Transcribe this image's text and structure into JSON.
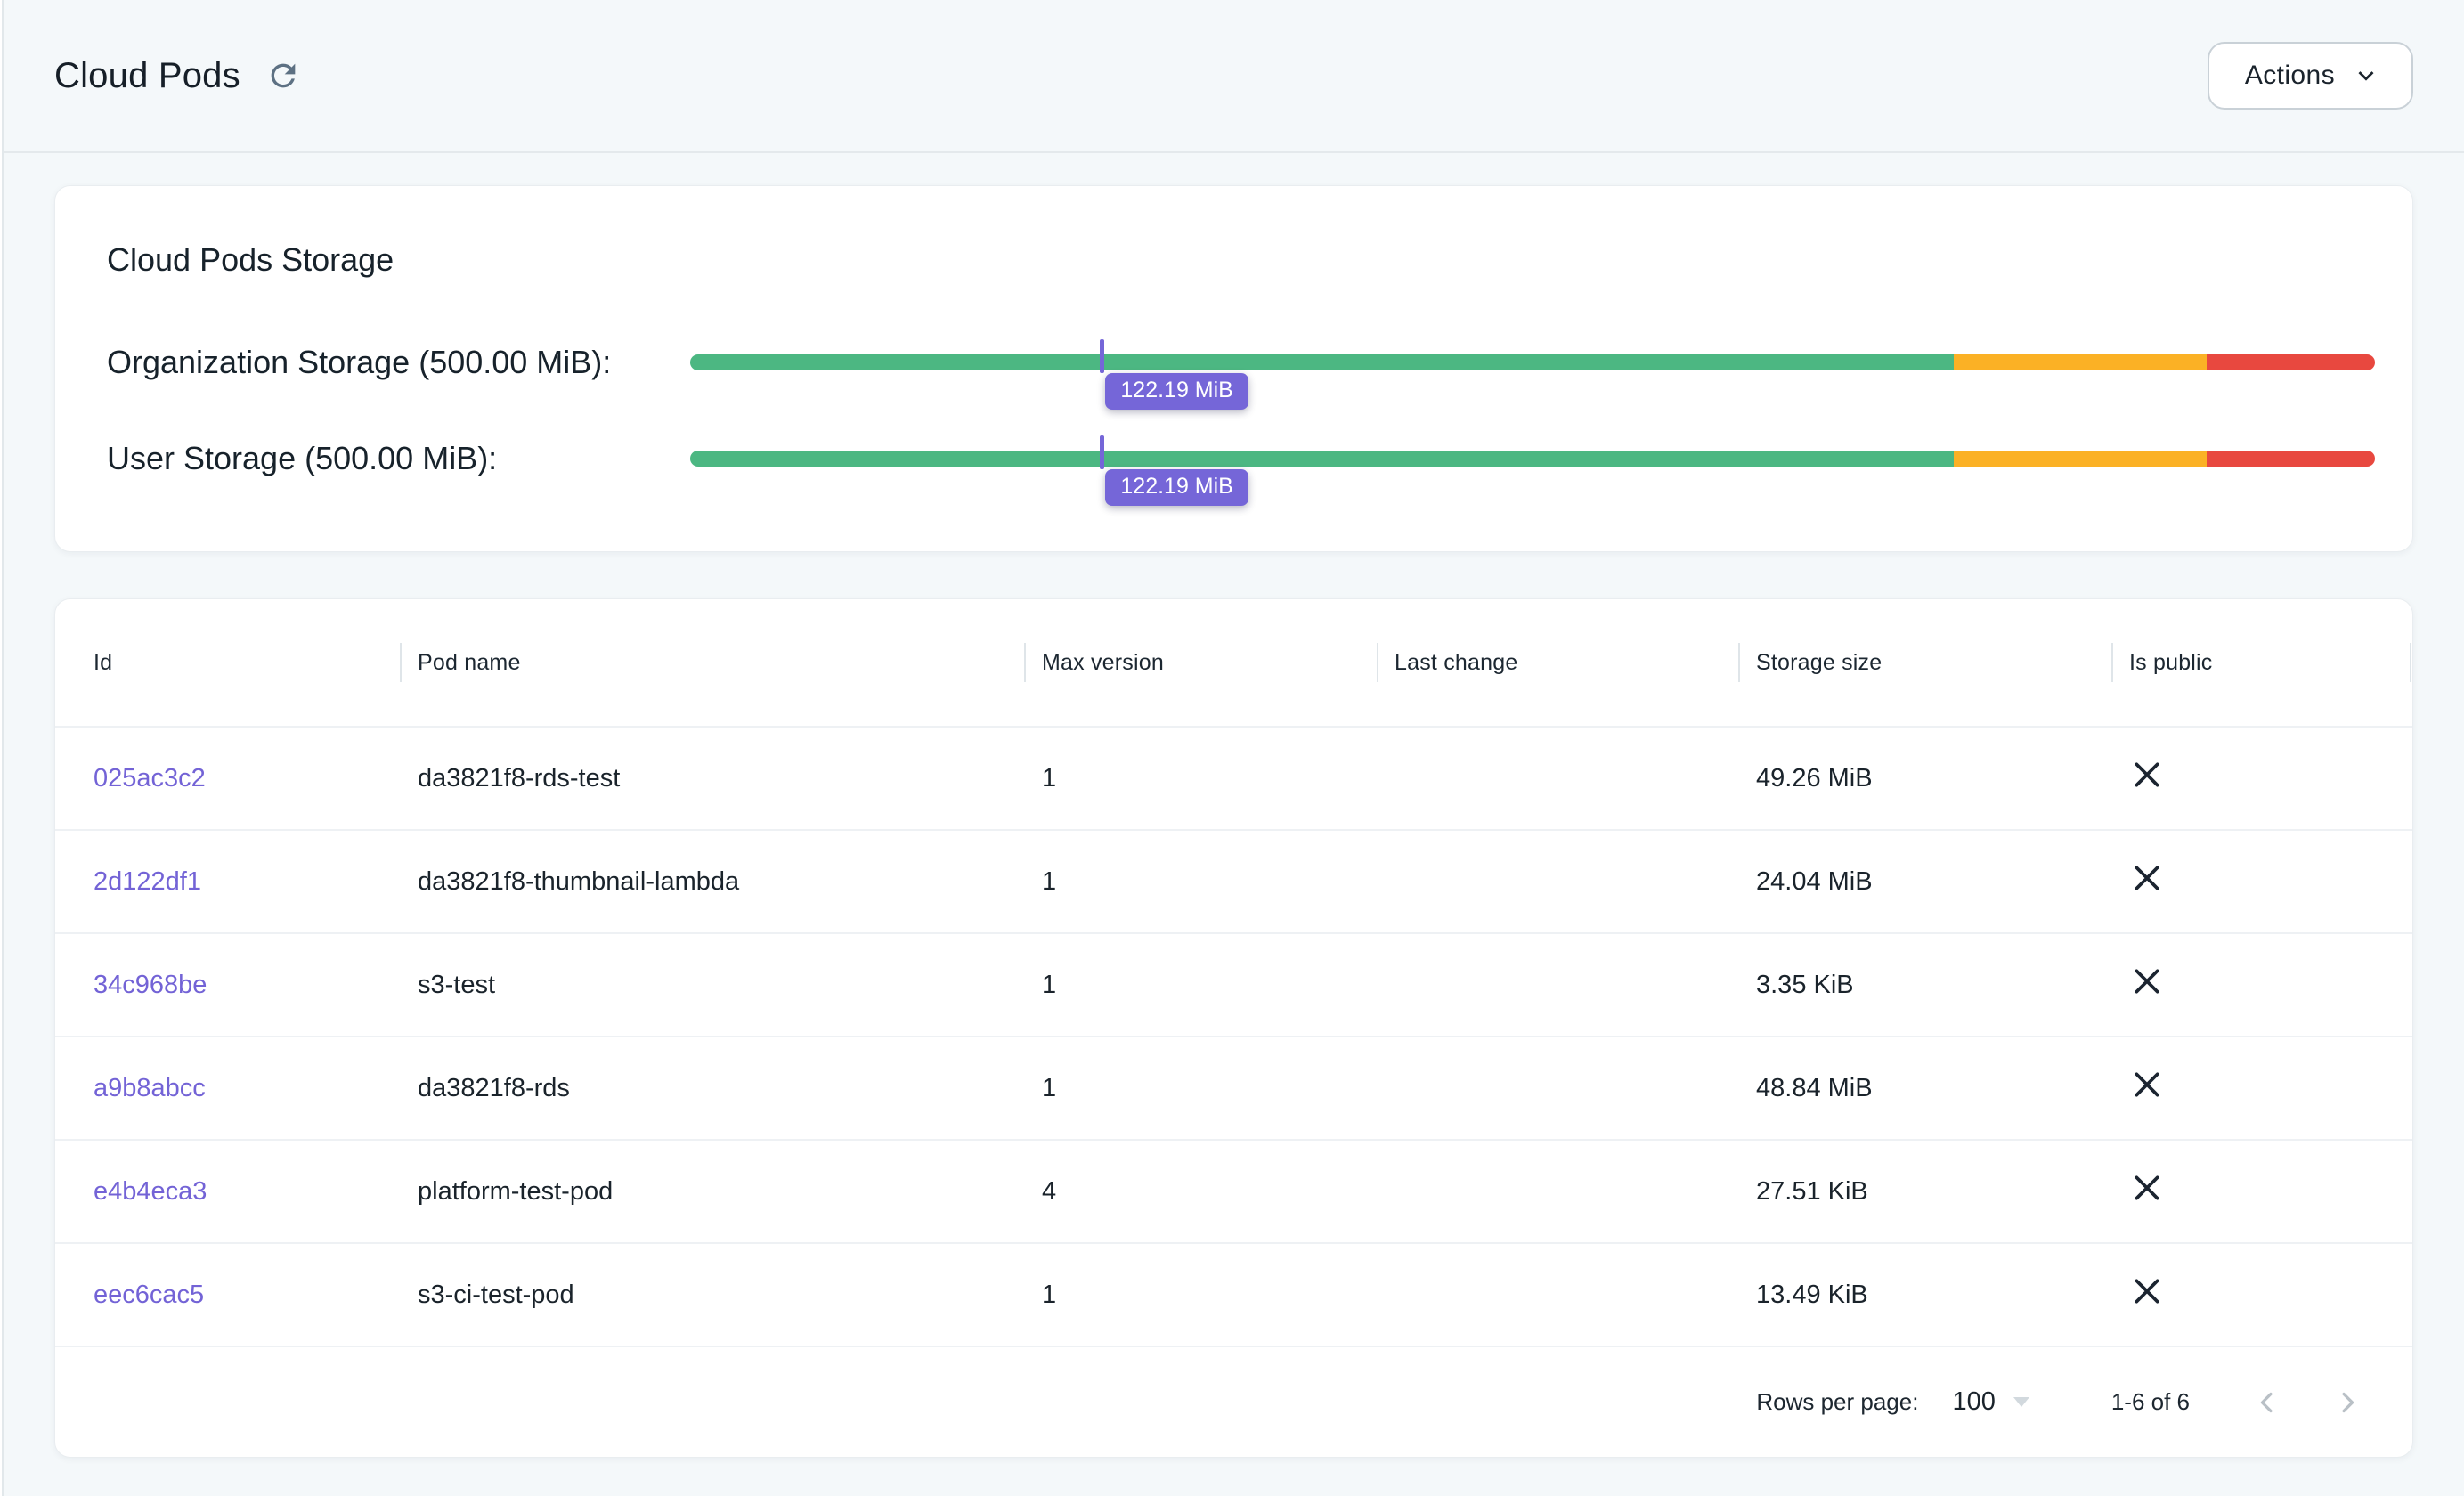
{
  "header": {
    "title": "Cloud Pods",
    "actions_label": "Actions"
  },
  "storage_card": {
    "title": "Cloud Pods Storage",
    "rows": [
      {
        "label": "Organization Storage (500.00 MiB):",
        "value_label": "122.19 MiB",
        "used_mib": 122.19,
        "total_mib": 500.0,
        "percent": 24.44
      },
      {
        "label": "User Storage (500.00 MiB):",
        "value_label": "122.19 MiB",
        "used_mib": 122.19,
        "total_mib": 500.0,
        "percent": 24.44
      }
    ],
    "segments": {
      "green_pct": 75,
      "yellow_pct": 15,
      "red_pct": 10
    },
    "colors": {
      "green": "#4CB782",
      "yellow": "#FBB125",
      "red": "#E8483F",
      "marker": "#7566D8",
      "badge": "#7566D8"
    }
  },
  "table": {
    "columns": [
      "Id",
      "Pod name",
      "Max version",
      "Last change",
      "Storage size",
      "Is public"
    ],
    "rows": [
      {
        "id": "025ac3c2",
        "pod_name": "da3821f8-rds-test",
        "max_version": "1",
        "last_change": "",
        "storage_size": "49.26 MiB",
        "is_public": false
      },
      {
        "id": "2d122df1",
        "pod_name": "da3821f8-thumbnail-lambda",
        "max_version": "1",
        "last_change": "",
        "storage_size": "24.04 MiB",
        "is_public": false
      },
      {
        "id": "34c968be",
        "pod_name": "s3-test",
        "max_version": "1",
        "last_change": "",
        "storage_size": "3.35 KiB",
        "is_public": false
      },
      {
        "id": "a9b8abcc",
        "pod_name": "da3821f8-rds",
        "max_version": "1",
        "last_change": "",
        "storage_size": "48.84 MiB",
        "is_public": false
      },
      {
        "id": "e4b4eca3",
        "pod_name": "platform-test-pod",
        "max_version": "4",
        "last_change": "",
        "storage_size": "27.51 KiB",
        "is_public": false
      },
      {
        "id": "eec6cac5",
        "pod_name": "s3-ci-test-pod",
        "max_version": "1",
        "last_change": "",
        "storage_size": "13.49 KiB",
        "is_public": false
      }
    ],
    "pagination": {
      "rows_per_page_label": "Rows per page:",
      "rows_per_page": "100",
      "range_label": "1-6 of 6"
    }
  }
}
